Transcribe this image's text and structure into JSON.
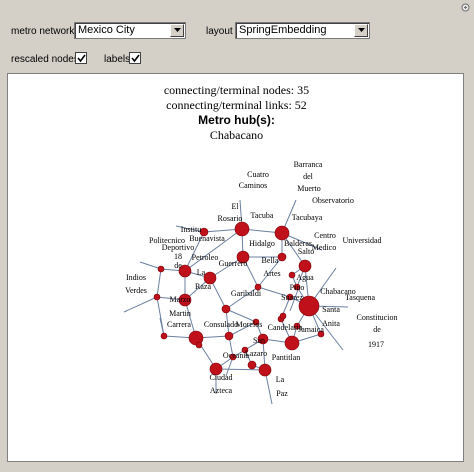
{
  "controls": {
    "metro_network_label": "metro network",
    "metro_network_value": "Mexico City",
    "layout_label": "layout",
    "layout_value": "SpringEmbedding",
    "rescaled_nodes_label": "rescaled nodes",
    "rescaled_nodes_checked": true,
    "labels_label": "labels",
    "labels_checked": true
  },
  "info": {
    "nodes_line": "connecting/terminal nodes: 35",
    "links_line": "connecting/terminal links: 52",
    "hubs_heading": "Metro hub(s):",
    "hub_name": "Chabacano"
  },
  "graph": {
    "node_color": "#c0101a",
    "edge_color": "#6c7fa0",
    "label_lines": [
      "Cuatro",
      "Caminos",
      "Barranca",
      "del",
      "Muerto",
      "Observatorio",
      "El",
      "Rosario",
      "Tacuba",
      "Tacubaya",
      "Institu",
      "Buenavista",
      "Centro",
      "Medico",
      "Universidad",
      "Politecnico",
      "Deportivo",
      "Hidalgo",
      "Balderas",
      "Salto",
      "18",
      "Petroleo",
      "Bella",
      "Indios",
      "Verdes",
      "La",
      "Guerrero",
      "Artes",
      "Agua",
      "Raza",
      "Pino",
      "Chabacano",
      "Santa",
      "Martin",
      "Garibaldi",
      "Suarez",
      "Tasquena",
      "Carrera",
      "Anita",
      "Consulado",
      "Constitucion",
      "de",
      "1917",
      "Morelos",
      "Candelaria",
      "Jamaica",
      "San",
      "Lazaro",
      "Pantitlan",
      "Oceania",
      "Ciudad",
      "Azteca",
      "La",
      "Paz",
      "Marzo",
      "de"
    ]
  }
}
